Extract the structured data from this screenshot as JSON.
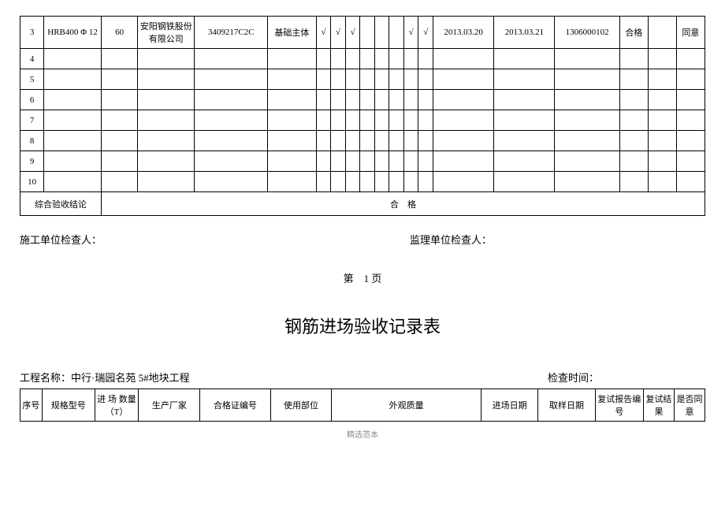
{
  "topTable": {
    "rows": [
      {
        "seq": "3",
        "spec": "HRB400 Φ 12",
        "qty": "60",
        "mfr": "安阳钢铁股份有限公司",
        "cert": "3409217C2C",
        "part": "基础主体",
        "c1": "√",
        "c2": "√",
        "c3": "√",
        "c4": "",
        "c5": "",
        "c6": "",
        "c7": "√",
        "c8": "√",
        "date1": "2013.03.20",
        "date2": "2013.03.21",
        "rpt": "1306000102",
        "result": "合格",
        "blank": "",
        "agree": "同意"
      },
      {
        "seq": "4",
        "spec": "",
        "qty": "",
        "mfr": "",
        "cert": "",
        "part": "",
        "c1": "",
        "c2": "",
        "c3": "",
        "c4": "",
        "c5": "",
        "c6": "",
        "c7": "",
        "c8": "",
        "date1": "",
        "date2": "",
        "rpt": "",
        "result": "",
        "blank": "",
        "agree": ""
      },
      {
        "seq": "5",
        "spec": "",
        "qty": "",
        "mfr": "",
        "cert": "",
        "part": "",
        "c1": "",
        "c2": "",
        "c3": "",
        "c4": "",
        "c5": "",
        "c6": "",
        "c7": "",
        "c8": "",
        "date1": "",
        "date2": "",
        "rpt": "",
        "result": "",
        "blank": "",
        "agree": ""
      },
      {
        "seq": "6",
        "spec": "",
        "qty": "",
        "mfr": "",
        "cert": "",
        "part": "",
        "c1": "",
        "c2": "",
        "c3": "",
        "c4": "",
        "c5": "",
        "c6": "",
        "c7": "",
        "c8": "",
        "date1": "",
        "date2": "",
        "rpt": "",
        "result": "",
        "blank": "",
        "agree": ""
      },
      {
        "seq": "7",
        "spec": "",
        "qty": "",
        "mfr": "",
        "cert": "",
        "part": "",
        "c1": "",
        "c2": "",
        "c3": "",
        "c4": "",
        "c5": "",
        "c6": "",
        "c7": "",
        "c8": "",
        "date1": "",
        "date2": "",
        "rpt": "",
        "result": "",
        "blank": "",
        "agree": ""
      },
      {
        "seq": "8",
        "spec": "",
        "qty": "",
        "mfr": "",
        "cert": "",
        "part": "",
        "c1": "",
        "c2": "",
        "c3": "",
        "c4": "",
        "c5": "",
        "c6": "",
        "c7": "",
        "c8": "",
        "date1": "",
        "date2": "",
        "rpt": "",
        "result": "",
        "blank": "",
        "agree": ""
      },
      {
        "seq": "9",
        "spec": "",
        "qty": "",
        "mfr": "",
        "cert": "",
        "part": "",
        "c1": "",
        "c2": "",
        "c3": "",
        "c4": "",
        "c5": "",
        "c6": "",
        "c7": "",
        "c8": "",
        "date1": "",
        "date2": "",
        "rpt": "",
        "result": "",
        "blank": "",
        "agree": ""
      },
      {
        "seq": "10",
        "spec": "",
        "qty": "",
        "mfr": "",
        "cert": "",
        "part": "",
        "c1": "",
        "c2": "",
        "c3": "",
        "c4": "",
        "c5": "",
        "c6": "",
        "c7": "",
        "c8": "",
        "date1": "",
        "date2": "",
        "rpt": "",
        "result": "",
        "blank": "",
        "agree": ""
      }
    ],
    "conclusionLabel": "综合验收结论",
    "conclusionValue": "合　格"
  },
  "signatures": {
    "construction": "施工单位检查人：",
    "supervision": "监理单位检查人："
  },
  "pageNum": "第　1 页",
  "title": "钢筋进场验收记录表",
  "projectInfo": {
    "name": "工程名称：中行·瑞园名苑 5#地块工程",
    "time": "检查时间："
  },
  "headerTable": {
    "columns": [
      "序号",
      "规格型号",
      "进 场 数量（T）",
      "生产厂家",
      "合格证编号",
      "使用部位",
      "外观质量",
      "进场日期",
      "取样日期",
      "复试报告编号",
      "复试结果",
      "是否同意"
    ]
  },
  "footer": "精选范本"
}
